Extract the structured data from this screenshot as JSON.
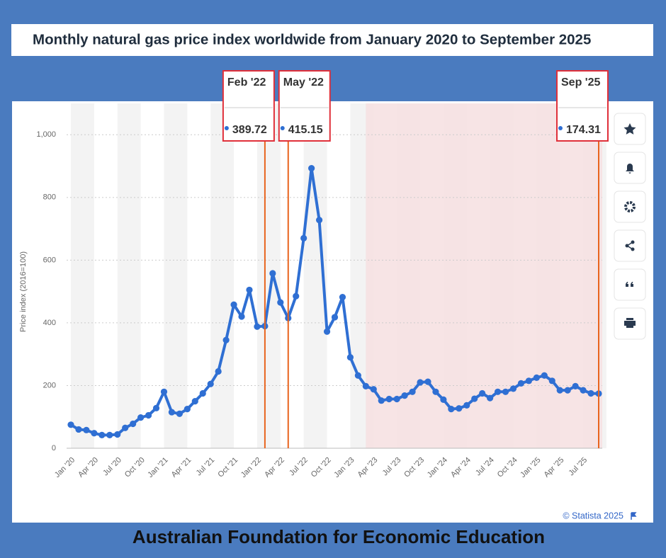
{
  "chart_data": {
    "type": "line",
    "title": "Monthly natural gas price index worldwide from January 2020 to September 2025",
    "y_label": "Price index (2016=100)",
    "credit": "© Statista 2025",
    "footer": "Australian Foundation for Economic Education",
    "color": "#2f6fd3",
    "categories": [
      "Jan '20",
      null,
      null,
      "Apr '20",
      null,
      null,
      "Jul '20",
      null,
      null,
      "Oct '20",
      null,
      null,
      "Jan '21",
      null,
      null,
      "Apr '21",
      null,
      null,
      "Jul '21",
      null,
      null,
      "Oct '21",
      null,
      null,
      "Jan '22",
      null,
      null,
      "Apr '22",
      null,
      null,
      "Jul '22",
      null,
      null,
      "Oct '22",
      null,
      null,
      "Jan '23",
      null,
      null,
      "Apr '23",
      null,
      null,
      "Jul '23",
      null,
      null,
      "Oct '23",
      null,
      null,
      "Jan '24",
      null,
      null,
      "Apr '24",
      null,
      null,
      "Jul '24",
      null,
      null,
      "Oct '24",
      null,
      null,
      "Jan '25",
      null,
      null,
      "Apr '25",
      null,
      null,
      "Jul '25",
      null,
      null
    ],
    "values": [
      75,
      60,
      58,
      48,
      42,
      42,
      44,
      65,
      78,
      98,
      105,
      128,
      180,
      115,
      110,
      125,
      150,
      175,
      205,
      245,
      345,
      458,
      420,
      505,
      388,
      389.72,
      558,
      465,
      415.15,
      485,
      670,
      893,
      728,
      372,
      418,
      482,
      290,
      232,
      198,
      188,
      152,
      157,
      157,
      168,
      180,
      210,
      212,
      180,
      155,
      125,
      127,
      137,
      158,
      175,
      160,
      180,
      180,
      190,
      207,
      215,
      225,
      232,
      215,
      185,
      185,
      198,
      185,
      175,
      174.31
    ],
    "ylim": [
      0,
      1100
    ],
    "yticks": [
      0,
      200,
      400,
      600,
      800,
      {
        "value": 1000,
        "label": "1,000"
      }
    ],
    "grid": true,
    "shaded_from": "Apr '23",
    "annotations": [
      {
        "label": "Feb '22",
        "value": 389.72
      },
      {
        "label": "May '22",
        "value": 415.15
      },
      {
        "label": "Sep '25",
        "value": 174.31
      }
    ]
  }
}
